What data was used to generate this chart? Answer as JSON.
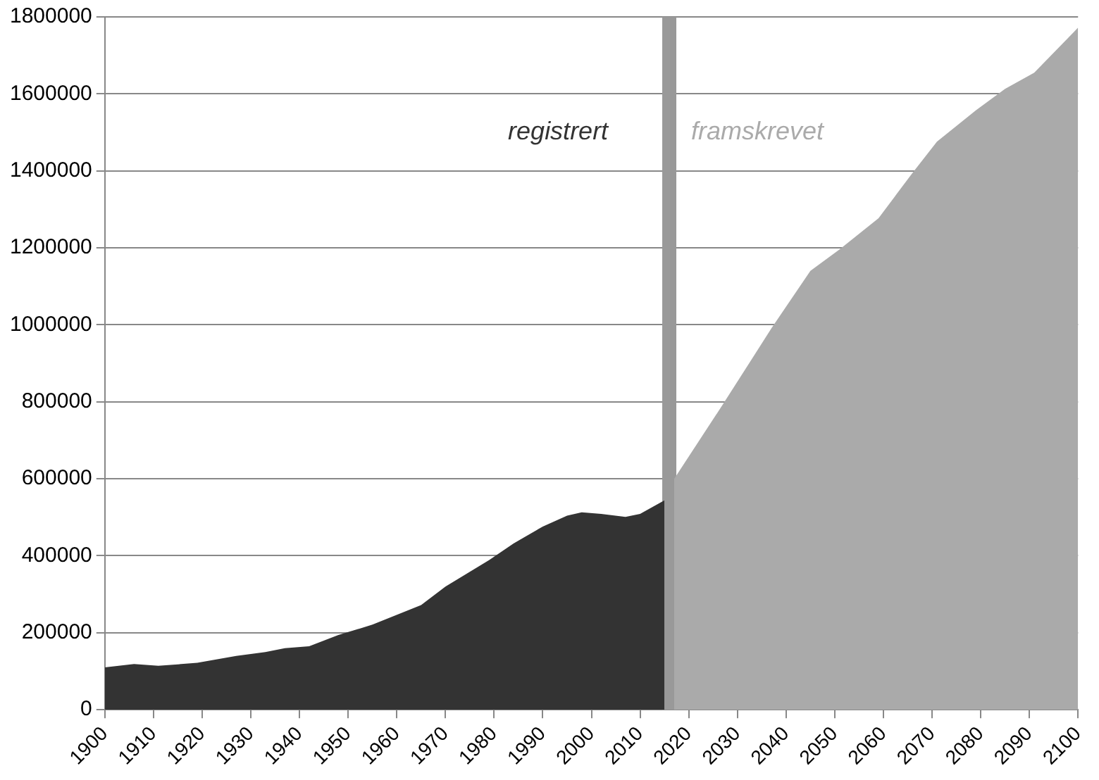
{
  "chart_data": {
    "type": "area",
    "xlim": [
      1900,
      2100
    ],
    "xticks": [
      1900,
      1910,
      1920,
      1930,
      1940,
      1950,
      1960,
      1970,
      1980,
      1990,
      2000,
      2010,
      2020,
      2030,
      2040,
      2050,
      2060,
      2070,
      2080,
      2090,
      2100
    ],
    "ylim": [
      0,
      1800000
    ],
    "yticks": [
      0,
      200000,
      400000,
      600000,
      800000,
      1000000,
      1200000,
      1400000,
      1600000,
      1800000
    ],
    "grid": "y",
    "legend": false,
    "marker": "none",
    "ref_lines": [
      {
        "axis": "x",
        "value": 2016,
        "color": "#999999"
      }
    ],
    "series": [
      {
        "name": "registrert",
        "color": "#333333",
        "x": [
          1900,
          1906,
          1911,
          1919,
          1927,
          1933,
          1937,
          1942,
          1948,
          1955,
          1965,
          1970,
          1979,
          1984,
          1990,
          1995,
          1998,
          2002,
          2007,
          2010,
          2015
        ],
        "values": [
          110000,
          119000,
          114000,
          122000,
          140000,
          150000,
          160000,
          165000,
          194000,
          221000,
          272000,
          320000,
          389000,
          432000,
          476000,
          504000,
          513000,
          509000,
          501000,
          509000,
          544000
        ]
      },
      {
        "name": "framskrevet",
        "color": "#aaaaaa",
        "x": [
          2017,
          2027,
          2037,
          2045,
          2051,
          2059,
          2066,
          2071,
          2079,
          2085,
          2091,
          2100
        ],
        "values": [
          600000,
          793000,
          991000,
          1140000,
          1196000,
          1277000,
          1395000,
          1476000,
          1557000,
          1613000,
          1655000,
          1772000
        ]
      }
    ]
  }
}
